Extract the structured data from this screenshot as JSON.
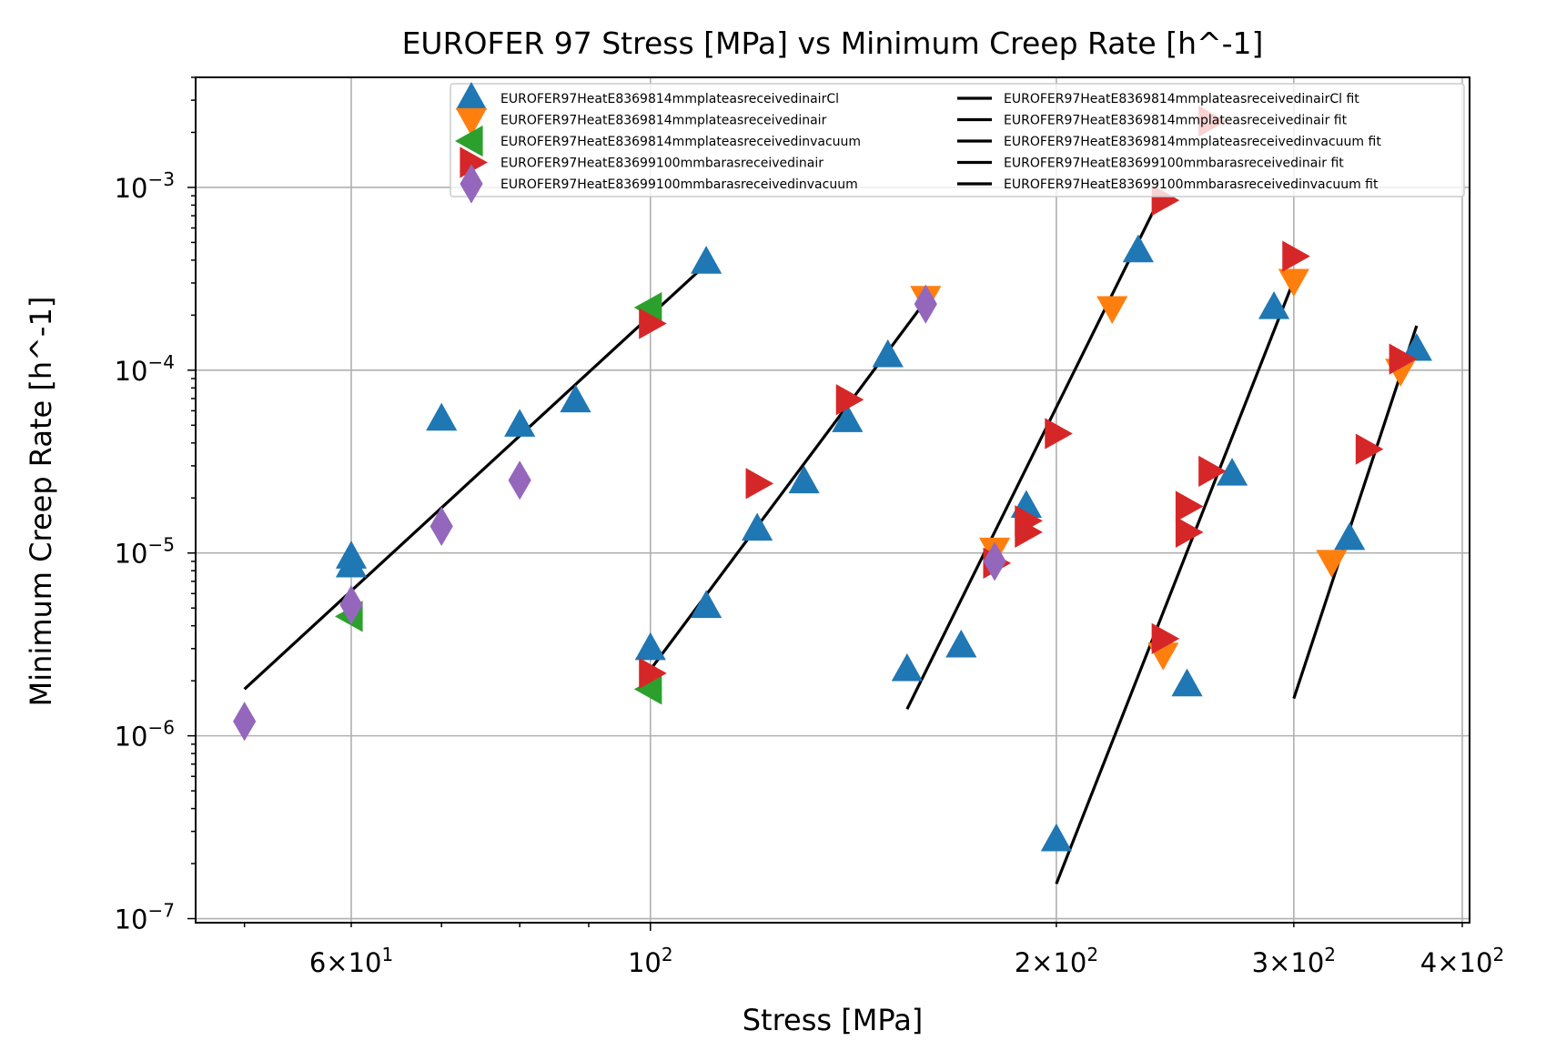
{
  "chart_data": {
    "type": "scatter",
    "title": "EUROFER 97 Stress [MPa] vs Minimum Creep Rate [h^-1]",
    "xlabel": "Stress [MPa]",
    "ylabel": "Minimum Creep Rate [h^-1]",
    "xscale": "log",
    "yscale": "log",
    "xlim": [
      46,
      405
    ],
    "ylim": [
      9.5e-08,
      0.004
    ],
    "grid": true,
    "legend_position": "upper-right",
    "x_ticks": [
      {
        "value": 60,
        "mantissa": "6",
        "exponent": "1"
      },
      {
        "value": 100,
        "mantissa": "",
        "exponent": "2"
      },
      {
        "value": 200,
        "mantissa": "2",
        "exponent": "2"
      },
      {
        "value": 300,
        "mantissa": "3",
        "exponent": "2"
      },
      {
        "value": 400,
        "mantissa": "4",
        "exponent": "2"
      }
    ],
    "y_ticks": [
      {
        "value": 1e-07,
        "exponent": "−7"
      },
      {
        "value": 1e-06,
        "exponent": "−6"
      },
      {
        "value": 1e-05,
        "exponent": "−5"
      },
      {
        "value": 0.0001,
        "exponent": "−4"
      },
      {
        "value": 0.001,
        "exponent": "−3"
      }
    ],
    "series": [
      {
        "name": "EUROFER97HeatE8369814mmplateasreceivedinairCl",
        "marker": "triangle-up",
        "color": "#1f77b4",
        "x": [
          60,
          60,
          70,
          80,
          88,
          110,
          100,
          110,
          120,
          130,
          140,
          150,
          155,
          170,
          190,
          230,
          250,
          270,
          290,
          330,
          370,
          200
        ],
        "y": [
          8.5e-06,
          9.5e-06,
          5.4e-05,
          5e-05,
          6.8e-05,
          0.00039,
          3e-06,
          5.1e-06,
          1.35e-05,
          2.45e-05,
          5.3e-05,
          0.00012,
          2.3e-06,
          3.1e-06,
          1.8e-05,
          0.00045,
          1.9e-06,
          2.7e-05,
          0.00022,
          1.2e-05,
          0.00013,
          2.7e-07
        ]
      },
      {
        "name": "EUROFER97HeatE8369814mmplateasreceivedinair",
        "marker": "triangle-down",
        "color": "#ff7f0e",
        "x": [
          160,
          180,
          220,
          240,
          300,
          320,
          360
        ],
        "y": [
          0.00025,
          1.05e-05,
          0.00022,
          2.8e-06,
          0.00031,
          9e-06,
          0.0001
        ]
      },
      {
        "name": "EUROFER97HeatE8369814mmplateasreceivedinvacuum",
        "marker": "triangle-left",
        "color": "#2ca02c",
        "x": [
          60,
          100,
          100
        ],
        "y": [
          4.5e-06,
          0.00022,
          1.8e-06
        ]
      },
      {
        "name": "EUROFER97HeatE83699100mmbarasreceivedinair",
        "marker": "triangle-right",
        "color": "#d62728",
        "x": [
          100,
          100,
          120,
          140,
          180,
          190,
          190,
          200,
          240,
          240,
          250,
          250,
          260,
          260,
          300,
          340,
          360
        ],
        "y": [
          0.00018,
          2.2e-06,
          2.4e-05,
          6.9e-05,
          8.8e-06,
          1.5e-05,
          1.3e-05,
          4.5e-05,
          0.00085,
          3.4e-06,
          1.8e-05,
          1.3e-05,
          2.8e-05,
          0.0023,
          0.00042,
          3.7e-05,
          0.000115
        ]
      },
      {
        "name": "EUROFER97HeatE83699100mmbarasreceivedinvacuum",
        "marker": "diamond",
        "color": "#9467bd",
        "x": [
          50,
          60,
          70,
          80,
          160,
          180
        ],
        "y": [
          1.2e-06,
          5.2e-06,
          1.4e-05,
          2.5e-05,
          0.00023,
          9e-06
        ]
      }
    ],
    "fit_lines": [
      {
        "name": "EUROFER97HeatE8369814mmplateasreceivedinairCl fit",
        "color": "#000000",
        "x": [
          50,
          110
        ],
        "y": [
          1.8e-06,
          0.00038
        ]
      },
      {
        "name": "EUROFER97HeatE8369814mmplateasreceivedinair fit",
        "color": "#000000",
        "x": [
          100,
          160
        ],
        "y": [
          2.3e-06,
          0.00024
        ]
      },
      {
        "name": "EUROFER97HeatE8369814mmplateasreceivedinvacuum fit",
        "color": "#000000",
        "x": [
          155,
          240
        ],
        "y": [
          1.4e-06,
          0.00095
        ]
      },
      {
        "name": "EUROFER97HeatE83699100mmbarasreceivedinair fit",
        "color": "#000000",
        "x": [
          200,
          300
        ],
        "y": [
          1.55e-07,
          0.00031
        ]
      },
      {
        "name": "EUROFER97HeatE83699100mmbarasreceivedinvacuum fit",
        "color": "#000000",
        "x": [
          300,
          370
        ],
        "y": [
          1.6e-06,
          0.000175
        ]
      }
    ]
  }
}
